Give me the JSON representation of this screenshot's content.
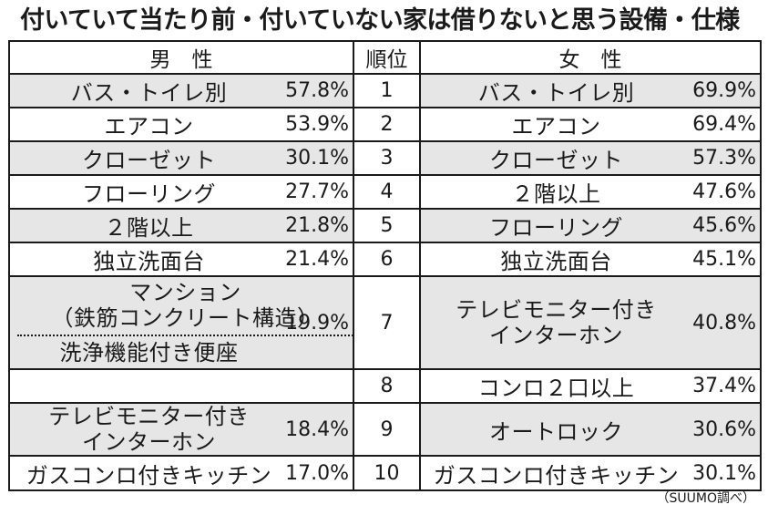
{
  "title": "付いていて当たり前・付いていない家は借りないと思う設備・仕様",
  "header": {
    "male": "男　性",
    "rank": "順位",
    "female": "女　性"
  },
  "rows": [
    {
      "rank": "1",
      "male_item": "バス・トイレ別",
      "male_pct": "57.8%",
      "female_item": "バス・トイレ別",
      "female_pct": "69.9%"
    },
    {
      "rank": "2",
      "male_item": "エアコン",
      "male_pct": "53.9%",
      "female_item": "エアコン",
      "female_pct": "69.4%"
    },
    {
      "rank": "3",
      "male_item": "クローゼット",
      "male_pct": "30.1%",
      "female_item": "クローゼット",
      "female_pct": "57.3%"
    },
    {
      "rank": "4",
      "male_item": "フローリング",
      "male_pct": "27.7%",
      "female_item": "２階以上",
      "female_pct": "47.6%"
    },
    {
      "rank": "5",
      "male_item": "２階以上",
      "male_pct": "21.8%",
      "female_item": "フローリング",
      "female_pct": "45.6%"
    },
    {
      "rank": "6",
      "male_item": "独立洗面台",
      "male_pct": "21.4%",
      "female_item": "独立洗面台",
      "female_pct": "45.1%"
    },
    {
      "rank": "7",
      "male_item_a1": "マンション",
      "male_item_a2": "（鉄筋コンクリート構造）",
      "male_item_b": "洗浄機能付き便座",
      "male_pct": "19.9%",
      "female_item_1": "テレビモニター付き",
      "female_item_2": "インターホン",
      "female_pct": "40.8%"
    },
    {
      "rank": "8",
      "female_item": "コンロ２口以上",
      "female_pct": "37.4%"
    },
    {
      "rank": "9",
      "male_item_1": "テレビモニター付き",
      "male_item_2": "インターホン",
      "male_pct": "18.4%",
      "female_item": "オートロック",
      "female_pct": "30.6%"
    },
    {
      "rank": "10",
      "male_item": "ガスコンロ付きキッチン",
      "male_pct": "17.0%",
      "female_item": "ガスコンロ付きキッチン",
      "female_pct": "30.1%"
    }
  ],
  "source": "（SUUMO調べ）"
}
